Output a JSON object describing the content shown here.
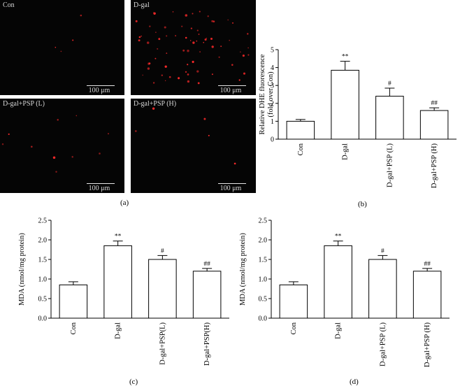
{
  "micrographs": [
    {
      "label": "Con",
      "scale": "100 μm",
      "dots": 4
    },
    {
      "label": "D-gal",
      "scale": "100 μm",
      "dots": 70
    },
    {
      "label": "D-gal+PSP (L)",
      "scale": "100 μm",
      "dots": 10
    },
    {
      "label": "D-gal+PSP (H)",
      "scale": "100 μm",
      "dots": 5
    }
  ],
  "panel_labels": {
    "a": "(a)",
    "b": "(b)",
    "c": "(c)",
    "d": "(d)"
  },
  "colors": {
    "dot": "#ff2a2a",
    "bar_fill": "#ffffff",
    "axis": "#000000"
  },
  "chart_data": [
    {
      "type": "bar",
      "panel": "b",
      "categories": [
        "Con",
        "D-gal",
        "D-gal+PSP (L)",
        "D-gal+PSP (H)"
      ],
      "values": [
        1.0,
        3.85,
        2.4,
        1.6
      ],
      "errors": [
        0.1,
        0.5,
        0.45,
        0.15
      ],
      "significance": [
        "",
        "**",
        "#",
        "##"
      ],
      "ylabel": "Relative DHE fluorescence (fold over Con)",
      "ylim": [
        0,
        5
      ],
      "yticks": [
        "0",
        "1",
        "2",
        "3",
        "4",
        "5"
      ]
    },
    {
      "type": "bar",
      "panel": "c",
      "categories": [
        "Con",
        "D-gal",
        "D-gal+PSP(L)",
        "D-gal+PSP(H)"
      ],
      "values": [
        0.85,
        1.85,
        1.5,
        1.2
      ],
      "errors": [
        0.08,
        0.12,
        0.1,
        0.07
      ],
      "significance": [
        "",
        "**",
        "#",
        "##"
      ],
      "ylabel": "MDA (nmol/mg protein)",
      "ylim": [
        0,
        2.5
      ],
      "yticks": [
        "0.0",
        "0.5",
        "1.0",
        "1.5",
        "2.0",
        "2.5"
      ]
    },
    {
      "type": "bar",
      "panel": "d",
      "categories": [
        "Con",
        "D-gal",
        "D-gal+PSP (L)",
        "D-gal+PSP (H)"
      ],
      "values": [
        0.85,
        1.85,
        1.5,
        1.2
      ],
      "errors": [
        0.08,
        0.12,
        0.1,
        0.07
      ],
      "significance": [
        "",
        "**",
        "#",
        "##"
      ],
      "ylabel": "MDA (nmol/mg protein)",
      "ylim": [
        0,
        2.5
      ],
      "yticks": [
        "0.0",
        "0.5",
        "1.0",
        "1.5",
        "2.0",
        "2.5"
      ]
    }
  ]
}
